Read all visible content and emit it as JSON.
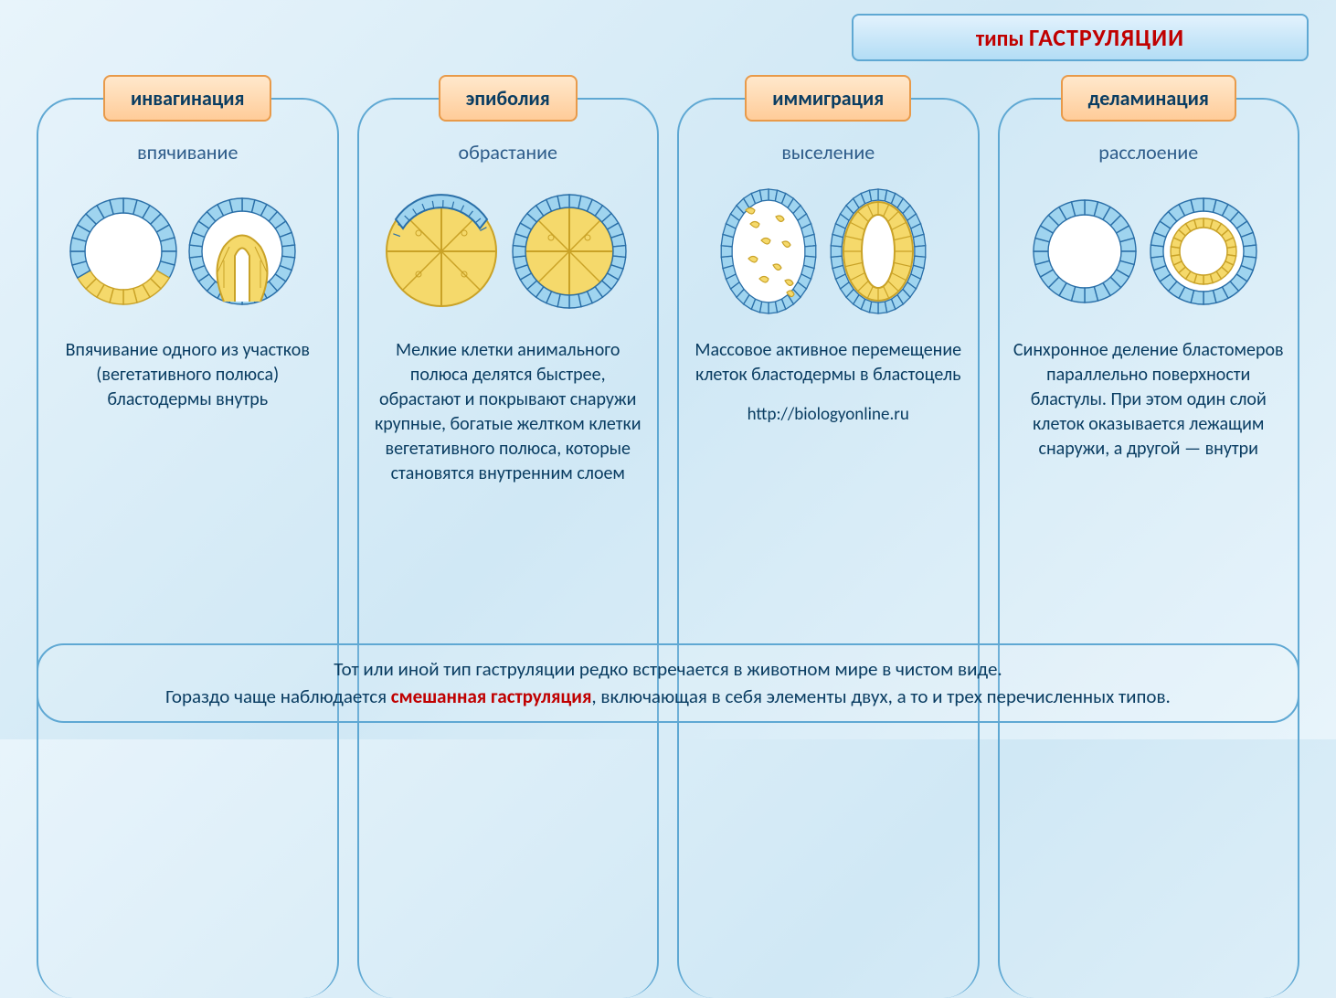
{
  "title_prefix": "типы",
  "title_main": "ГАСТРУЛЯЦИИ",
  "colors": {
    "outer_cell_fill": "#9fd4ef",
    "outer_cell_stroke": "#2a6fa8",
    "inner_cell_fill": "#f5d96b",
    "inner_cell_stroke": "#c9a227",
    "yolk_fill": "#f5d96b",
    "yolk_stroke": "#c9a227",
    "background": "#ffffff"
  },
  "columns": [
    {
      "label": "инвагинация",
      "subtitle": "впячивание",
      "desc": "Впячивание одного из участков (вегетативного полюса) бластодермы внутрь",
      "diagram": "invagination"
    },
    {
      "label": "эпиболия",
      "subtitle": "обрастание",
      "desc": "Мелкие клетки анимального полюса делятся быстрее, обрастают и покрывают снаружи крупные, богатые желтком клетки вегетативного полюса, которые становятся внутренним слоем",
      "diagram": "epiboly"
    },
    {
      "label": "иммиграция",
      "subtitle": "выселение",
      "desc": "Массовое активное перемещение клеток бластодермы в бластоцель",
      "diagram": "immigration",
      "link": "http://biologyonline.ru"
    },
    {
      "label": "деламинация",
      "subtitle": "расслоение",
      "desc": "Синхронное деление бластомеров параллельно поверхности бластулы. При этом один слой клеток оказывается лежащим снаружи, а другой — внутри",
      "diagram": "delamination"
    }
  ],
  "footer": {
    "line1": "Тот или иной тип гаструляции редко встречается в животном мире в чистом виде.",
    "line2_a": "Гораздо чаще наблюдается ",
    "line2_hl": "смешанная гаструляция",
    "line2_b": ", включающая в себя элементы двух, а то и трех перечисленных типов."
  }
}
